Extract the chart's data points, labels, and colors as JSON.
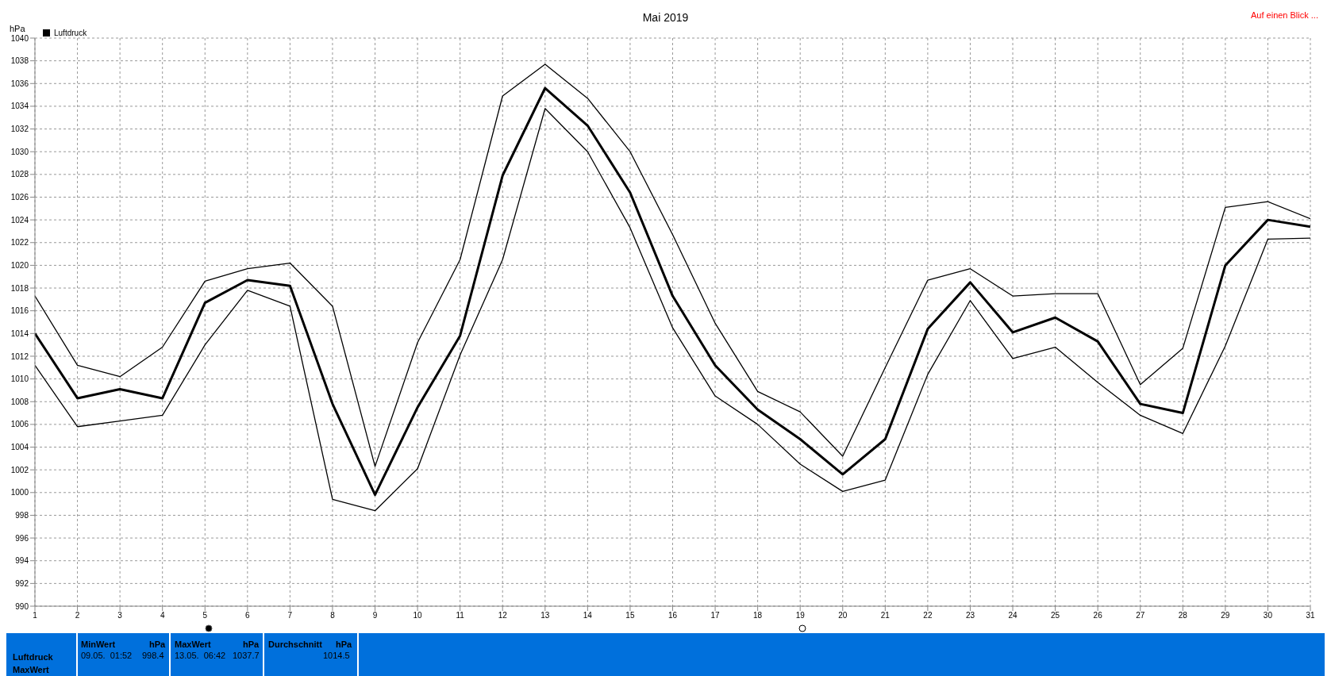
{
  "chart_data": {
    "type": "line",
    "title": "Mai 2019",
    "ylabel": "hPa",
    "x": [
      1,
      2,
      3,
      4,
      5,
      6,
      7,
      8,
      9,
      10,
      11,
      12,
      13,
      14,
      15,
      16,
      17,
      18,
      19,
      20,
      21,
      22,
      23,
      24,
      25,
      26,
      27,
      28,
      29,
      30,
      31
    ],
    "series": [
      {
        "color": "#000000",
        "values": [
          1017.3,
          1011.2,
          1010.2,
          1012.8,
          1018.6,
          1019.7,
          1020.2,
          1016.4,
          1002.3,
          1013.2,
          1020.5,
          1034.9,
          1037.7,
          1034.7,
          1030.0,
          1022.7,
          1014.9,
          1008.9,
          1007.1,
          1003.2,
          1011.0,
          1018.7,
          1019.7,
          1017.3,
          1017.5,
          1017.5,
          1009.5,
          1012.7,
          1025.1,
          1025.6,
          1024.1
        ]
      },
      {
        "name": "Luftdruck",
        "color": "#000000",
        "values": [
          1014.0,
          1008.3,
          1009.1,
          1008.3,
          1016.7,
          1018.7,
          1018.2,
          1007.8,
          999.8,
          1007.5,
          1013.8,
          1027.9,
          1035.6,
          1032.3,
          1026.4,
          1017.3,
          1011.2,
          1007.3,
          1004.7,
          1001.6,
          1004.7,
          1014.4,
          1018.5,
          1014.1,
          1015.4,
          1013.3,
          1007.8,
          1007.0,
          1020.0,
          1024.0,
          1023.4
        ]
      },
      {
        "color": "#000000",
        "values": [
          1011.2,
          1005.8,
          1006.3,
          1006.8,
          1013.0,
          1017.8,
          1016.4,
          999.4,
          998.4,
          1002.1,
          1012.1,
          1020.5,
          1033.8,
          1030.0,
          1023.3,
          1014.5,
          1008.5,
          1006.0,
          1002.5,
          1000.1,
          1001.1,
          1010.4,
          1016.9,
          1011.8,
          1012.8,
          1009.7,
          1006.8,
          1005.2,
          1012.9,
          1022.3,
          1022.4
        ]
      }
    ],
    "xlim": [
      1,
      31
    ],
    "xticks": [
      1,
      2,
      3,
      4,
      5,
      6,
      7,
      8,
      9,
      10,
      11,
      12,
      13,
      14,
      15,
      16,
      17,
      18,
      19,
      20,
      21,
      22,
      23,
      24,
      25,
      26,
      27,
      28,
      29,
      30,
      31
    ],
    "ylim": [
      990,
      1040
    ],
    "yticks": [
      990,
      992,
      994,
      996,
      998,
      1000,
      1002,
      1004,
      1006,
      1008,
      1010,
      1012,
      1014,
      1016,
      1018,
      1020,
      1022,
      1024,
      1026,
      1028,
      1030,
      1032,
      1034,
      1036,
      1038,
      1040
    ],
    "grid": true,
    "legend": "top left",
    "marker": "none",
    "line_style": "solid",
    "annotations": [
      "Auf einen Blick ...",
      "Luftdruck",
      "MaxWert",
      "MinWert",
      "hPa",
      "09.05.  01:52",
      "998.4",
      "MaxWert",
      "hPa",
      "13.05.  06:42",
      "1037.7",
      "Durchschnitt",
      "hPa",
      "1014.5"
    ]
  }
}
